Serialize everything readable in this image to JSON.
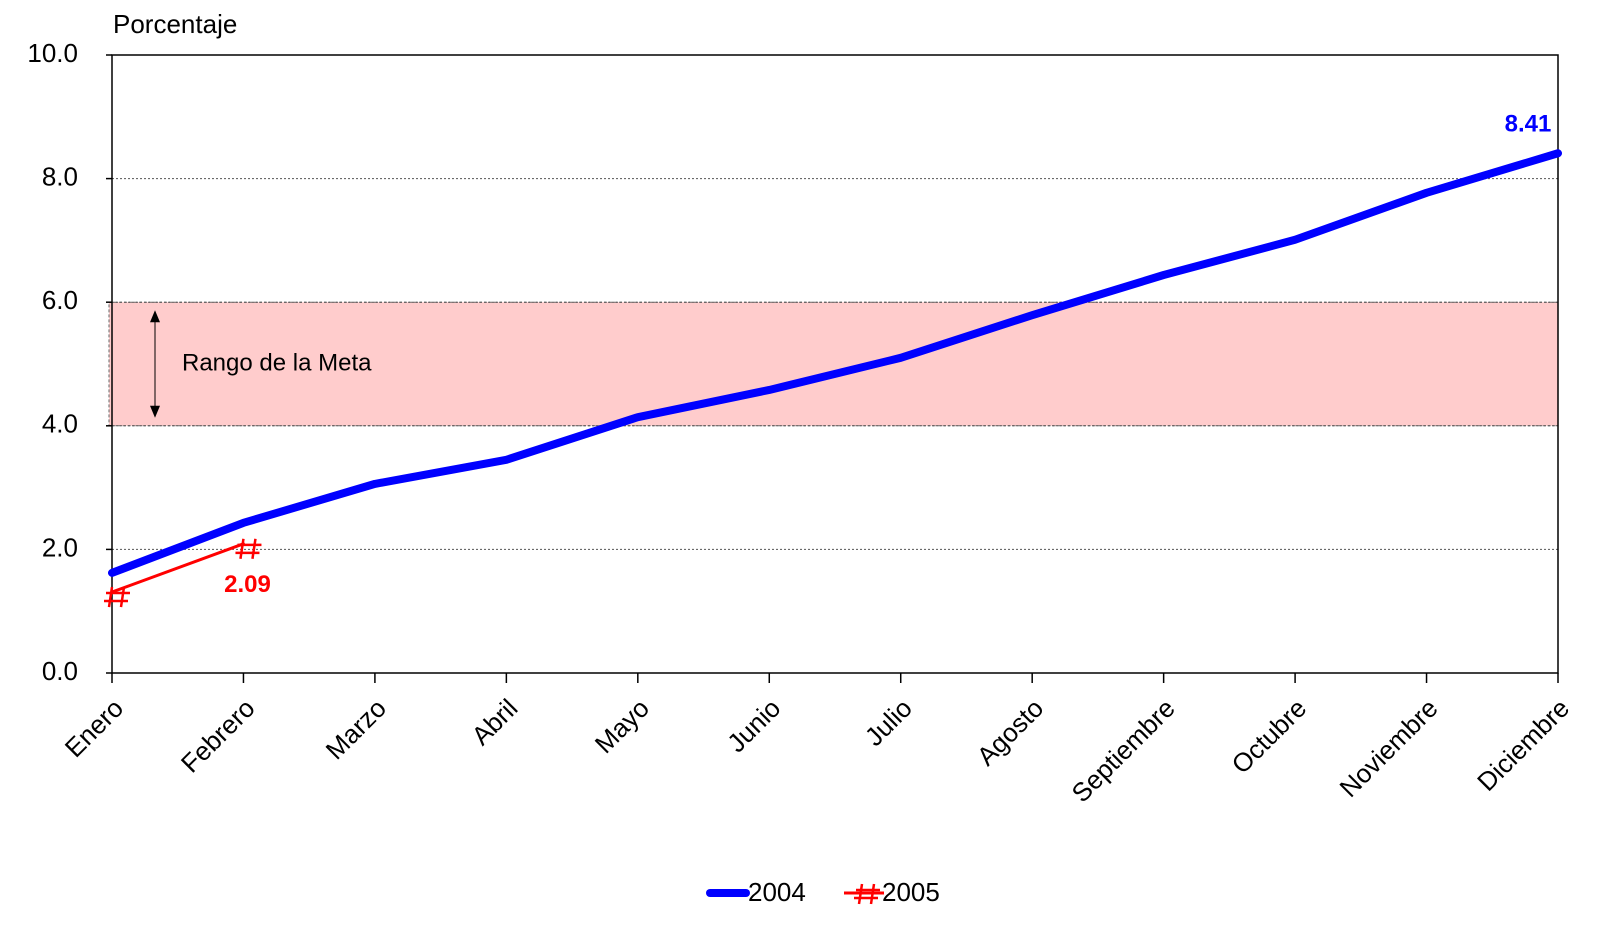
{
  "chart_data": {
    "type": "line",
    "y_label": "Porcentaje",
    "categories": [
      "Enero",
      "Febrero",
      "Marzo",
      "Abril",
      "Mayo",
      "Junio",
      "Julio",
      "Agosto",
      "Septiembre",
      "Octubre",
      "Noviembre",
      "Diciembre"
    ],
    "series": [
      {
        "name": "2004",
        "color": "#0000ff",
        "marker": "none",
        "values": [
          1.62,
          2.43,
          3.06,
          3.45,
          4.14,
          4.58,
          5.1,
          5.79,
          6.44,
          7.01,
          7.77,
          8.41
        ],
        "value_labels": [
          null,
          null,
          null,
          null,
          null,
          null,
          null,
          null,
          null,
          null,
          null,
          "8.41"
        ]
      },
      {
        "name": "2005",
        "color": "#ff0000",
        "marker": "hash",
        "values": [
          1.31,
          2.09,
          null,
          null,
          null,
          null,
          null,
          null,
          null,
          null,
          null,
          null
        ],
        "value_labels": [
          null,
          "2.09",
          null,
          null,
          null,
          null,
          null,
          null,
          null,
          null,
          null,
          null
        ]
      }
    ],
    "band": {
      "from": 4,
      "to": 6,
      "label": "Rango de la Meta",
      "color": "#ffcccc"
    },
    "ylim": [
      0,
      10
    ],
    "yticks": [
      {
        "value": 0,
        "label": "0.0"
      },
      {
        "value": 2,
        "label": "2.0"
      },
      {
        "value": 4,
        "label": "4.0"
      },
      {
        "value": 6,
        "label": "6.0"
      },
      {
        "value": 8,
        "label": "8.0"
      },
      {
        "value": 10,
        "label": "10.0"
      }
    ],
    "grid": true,
    "legend": "bottom"
  }
}
